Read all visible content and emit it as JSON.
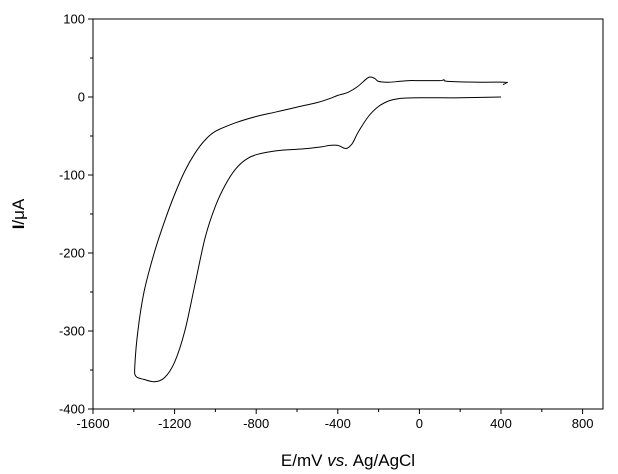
{
  "chart_data": {
    "type": "line",
    "title": "",
    "xlabel": {
      "prefix": "E/mV ",
      "italic": "vs.",
      "suffix": " Ag/AgCl"
    },
    "ylabel": {
      "bold": "I",
      "rest": "/μA"
    },
    "xlim": [
      -1600,
      900
    ],
    "ylim": [
      -400,
      100
    ],
    "x_ticks": [
      -1600,
      -1200,
      -800,
      -400,
      0,
      400,
      800
    ],
    "x_tick_labels": [
      "-1600",
      "-1200",
      "-800",
      "-400",
      "0",
      "400",
      "800"
    ],
    "y_ticks": [
      100,
      0,
      -100,
      -200,
      -300,
      -400
    ],
    "y_tick_labels": [
      "100",
      "0",
      "-100",
      "-200",
      "-300",
      "-400"
    ],
    "grid": false,
    "legend": "none",
    "line_color": "#000000",
    "series": [
      {
        "points": [
          [
            400,
            0
          ],
          [
            200,
            -1
          ],
          [
            0,
            -1
          ],
          [
            -100,
            -2
          ],
          [
            -150,
            -5
          ],
          [
            -200,
            -12
          ],
          [
            -250,
            -25
          ],
          [
            -300,
            -45
          ],
          [
            -330,
            -60
          ],
          [
            -360,
            -66
          ],
          [
            -400,
            -62
          ],
          [
            -440,
            -62
          ],
          [
            -480,
            -64
          ],
          [
            -550,
            -66
          ],
          [
            -600,
            -67
          ],
          [
            -700,
            -69
          ],
          [
            -800,
            -74
          ],
          [
            -850,
            -80
          ],
          [
            -900,
            -92
          ],
          [
            -950,
            -112
          ],
          [
            -1000,
            -140
          ],
          [
            -1050,
            -180
          ],
          [
            -1100,
            -240
          ],
          [
            -1150,
            -300
          ],
          [
            -1200,
            -340
          ],
          [
            -1250,
            -360
          ],
          [
            -1300,
            -365
          ],
          [
            -1350,
            -362
          ],
          [
            -1390,
            -358
          ],
          [
            -1395,
            -345
          ],
          [
            -1380,
            -300
          ],
          [
            -1350,
            -250
          ],
          [
            -1300,
            -200
          ],
          [
            -1250,
            -160
          ],
          [
            -1200,
            -125
          ],
          [
            -1150,
            -95
          ],
          [
            -1100,
            -72
          ],
          [
            -1050,
            -55
          ],
          [
            -1000,
            -44
          ],
          [
            -900,
            -33
          ],
          [
            -800,
            -25
          ],
          [
            -700,
            -19
          ],
          [
            -600,
            -13
          ],
          [
            -500,
            -7
          ],
          [
            -450,
            -3
          ],
          [
            -400,
            2
          ],
          [
            -350,
            6
          ],
          [
            -300,
            14
          ],
          [
            -250,
            25
          ],
          [
            -220,
            24
          ],
          [
            -200,
            20
          ],
          [
            -150,
            19
          ],
          [
            -100,
            20
          ],
          [
            -50,
            21
          ],
          [
            0,
            21
          ],
          [
            100,
            21
          ],
          [
            120,
            22
          ],
          [
            140,
            20
          ],
          [
            300,
            19
          ],
          [
            420,
            19
          ],
          [
            425,
            18
          ],
          [
            410,
            16
          ]
        ]
      }
    ]
  }
}
